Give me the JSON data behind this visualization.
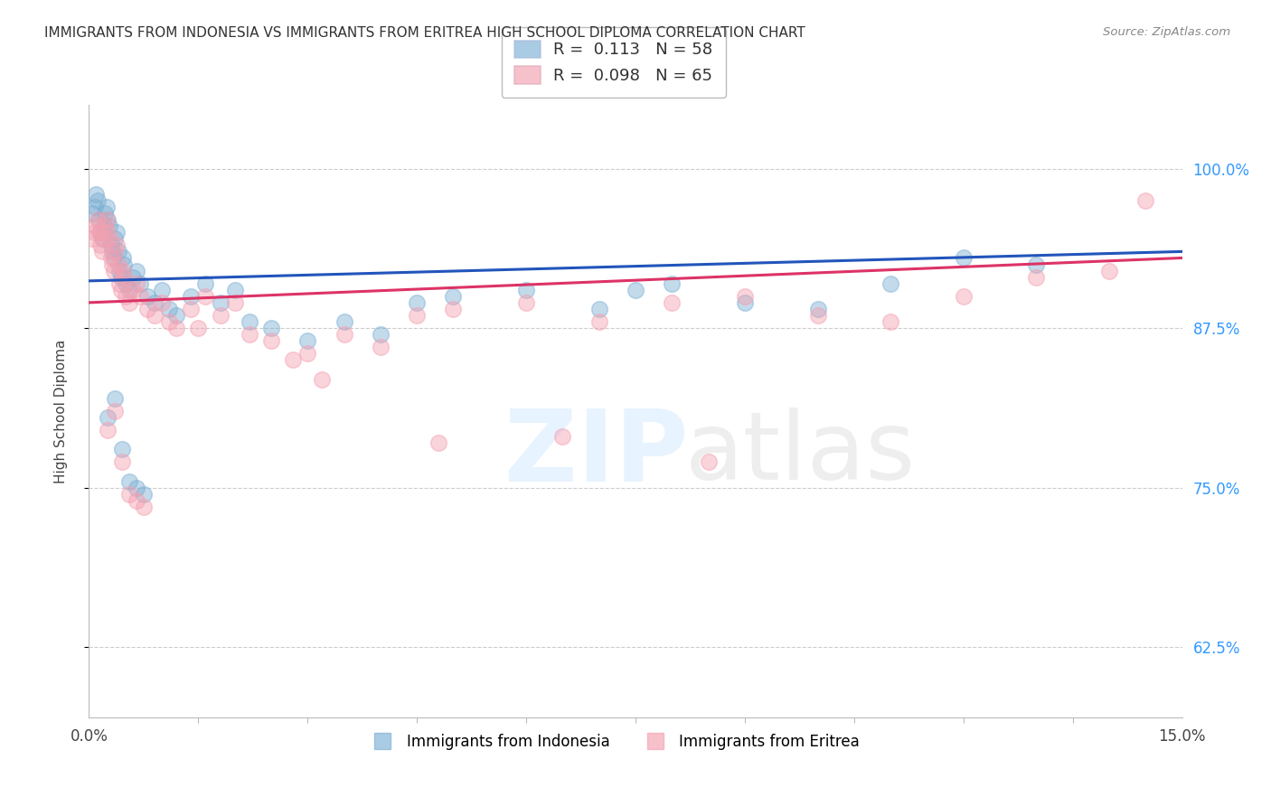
{
  "title": "IMMIGRANTS FROM INDONESIA VS IMMIGRANTS FROM ERITREA HIGH SCHOOL DIPLOMA CORRELATION CHART",
  "source": "Source: ZipAtlas.com",
  "ylabel": "High School Diploma",
  "yticks": [
    62.5,
    75.0,
    87.5,
    100.0
  ],
  "ytick_labels": [
    "62.5%",
    "75.0%",
    "87.5%",
    "100.0%"
  ],
  "xmin": 0.0,
  "xmax": 15.0,
  "ymin": 57.0,
  "ymax": 105.0,
  "R_indonesia": "0.113",
  "N_indonesia": "58",
  "R_eritrea": "0.098",
  "N_eritrea": "65",
  "color_indonesia": "#7BAFD4",
  "color_eritrea": "#F4A0B0",
  "color_line_indonesia": "#2255BB",
  "color_line_eritrea": "#DD3366",
  "legend_bottom_1": "Immigrants from Indonesia",
  "legend_bottom_2": "Immigrants from Eritrea",
  "indonesia_x": [
    0.05,
    0.08,
    0.1,
    0.12,
    0.14,
    0.16,
    0.18,
    0.2,
    0.22,
    0.24,
    0.26,
    0.28,
    0.3,
    0.32,
    0.34,
    0.36,
    0.38,
    0.4,
    0.42,
    0.44,
    0.46,
    0.48,
    0.5,
    0.55,
    0.6,
    0.65,
    0.7,
    0.8,
    0.9,
    1.0,
    1.1,
    1.2,
    1.4,
    1.6,
    1.8,
    2.0,
    2.2,
    2.5,
    3.0,
    3.5,
    4.0,
    4.5,
    5.0,
    6.0,
    7.0,
    7.5,
    8.0,
    9.0,
    10.0,
    11.0,
    12.0,
    13.0,
    0.25,
    0.35,
    0.45,
    0.55,
    0.65,
    0.75
  ],
  "indonesia_y": [
    96.5,
    97.0,
    98.0,
    97.5,
    96.0,
    95.0,
    94.5,
    95.5,
    96.5,
    97.0,
    96.0,
    95.5,
    94.0,
    93.5,
    93.0,
    94.5,
    95.0,
    93.5,
    92.0,
    91.5,
    93.0,
    92.5,
    91.0,
    90.5,
    91.5,
    92.0,
    91.0,
    90.0,
    89.5,
    90.5,
    89.0,
    88.5,
    90.0,
    91.0,
    89.5,
    90.5,
    88.0,
    87.5,
    86.5,
    88.0,
    87.0,
    89.5,
    90.0,
    90.5,
    89.0,
    90.5,
    91.0,
    89.5,
    89.0,
    91.0,
    93.0,
    92.5,
    80.5,
    82.0,
    78.0,
    75.5,
    75.0,
    74.5
  ],
  "eritrea_x": [
    0.05,
    0.08,
    0.1,
    0.12,
    0.14,
    0.16,
    0.18,
    0.2,
    0.22,
    0.24,
    0.26,
    0.28,
    0.3,
    0.32,
    0.34,
    0.36,
    0.38,
    0.4,
    0.42,
    0.44,
    0.46,
    0.48,
    0.5,
    0.55,
    0.6,
    0.65,
    0.7,
    0.8,
    0.9,
    1.0,
    1.1,
    1.2,
    1.4,
    1.6,
    1.8,
    2.0,
    2.2,
    2.5,
    3.0,
    3.5,
    4.0,
    4.5,
    5.0,
    6.0,
    7.0,
    8.0,
    9.0,
    10.0,
    11.0,
    12.0,
    13.0,
    14.0,
    0.25,
    0.35,
    0.45,
    0.55,
    0.65,
    0.75,
    1.5,
    2.8,
    3.2,
    4.8,
    6.5,
    8.5,
    14.5
  ],
  "eritrea_y": [
    94.5,
    95.0,
    95.5,
    96.0,
    95.0,
    94.0,
    93.5,
    94.5,
    95.5,
    96.0,
    95.0,
    94.5,
    93.0,
    92.5,
    92.0,
    93.5,
    94.0,
    92.5,
    91.0,
    90.5,
    92.0,
    91.5,
    90.0,
    89.5,
    90.5,
    91.0,
    90.0,
    89.0,
    88.5,
    89.5,
    88.0,
    87.5,
    89.0,
    90.0,
    88.5,
    89.5,
    87.0,
    86.5,
    85.5,
    87.0,
    86.0,
    88.5,
    89.0,
    89.5,
    88.0,
    89.5,
    90.0,
    88.5,
    88.0,
    90.0,
    91.5,
    92.0,
    79.5,
    81.0,
    77.0,
    74.5,
    74.0,
    73.5,
    87.5,
    85.0,
    83.5,
    78.5,
    79.0,
    77.0,
    97.5
  ]
}
